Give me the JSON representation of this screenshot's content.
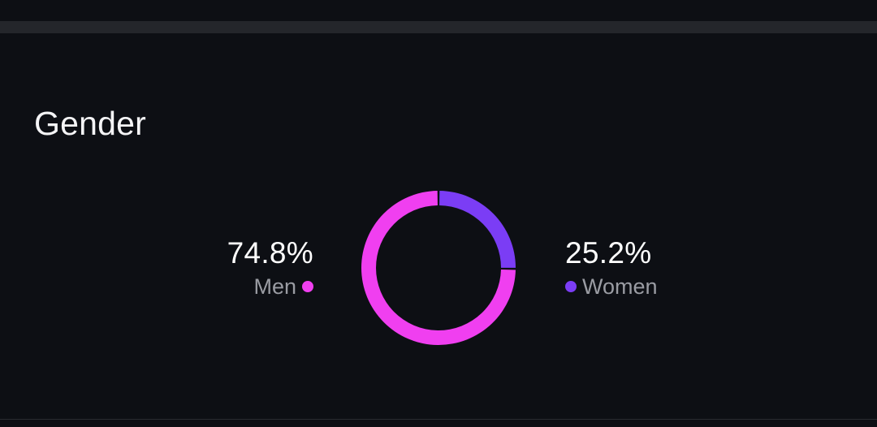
{
  "card": {
    "title": "Gender"
  },
  "colors": {
    "men": "#f03ff0",
    "women": "#7b3df5",
    "background": "#0d0f14"
  },
  "chart_data": {
    "type": "pie",
    "title": "Gender",
    "categories": [
      "Men",
      "Women"
    ],
    "values": [
      74.8,
      25.2
    ],
    "value_labels": [
      "74.8%",
      "25.2%"
    ],
    "donut": true,
    "legend": "sides"
  }
}
